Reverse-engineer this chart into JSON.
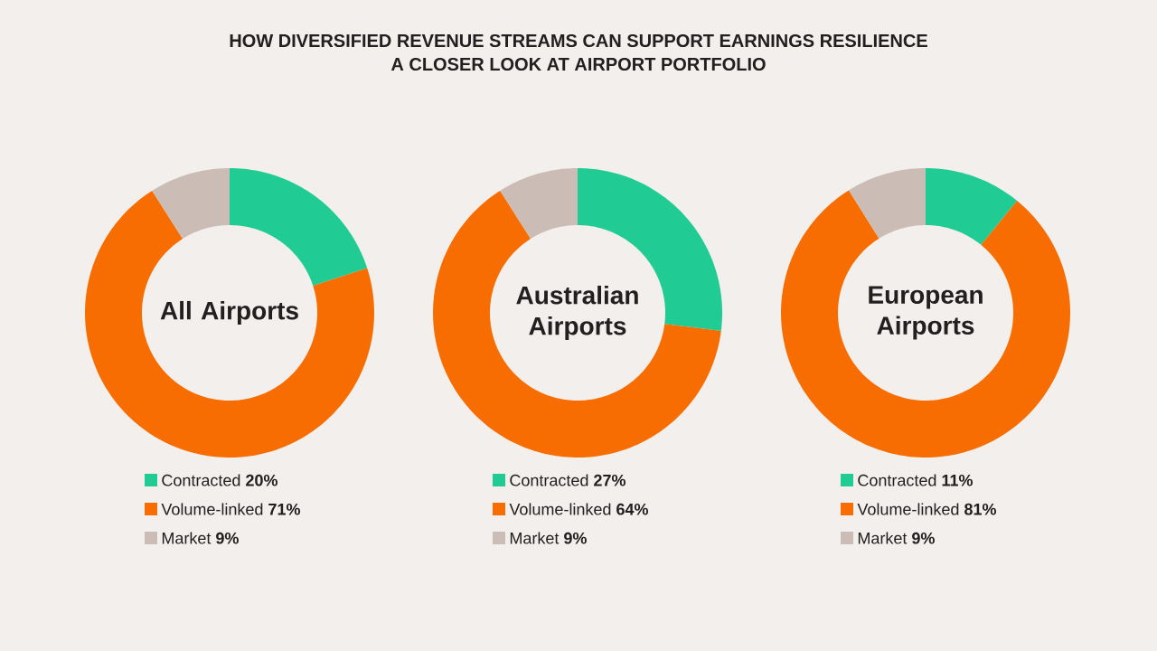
{
  "chart_data": [
    {
      "type": "other",
      "title": "HOW DIVERSIFIED REVENUE STREAMS CAN SUPPORT EARNINGS RESILIENCE",
      "subtitle": "A CLOSER LOOK AT AIRPORT PORTFOLIO"
    },
    {
      "type": "donut",
      "title": "All Airports",
      "categories": [
        "Contracted",
        "Volume-linked",
        "Market"
      ],
      "values": [
        20,
        71,
        9
      ],
      "value_labels": [
        "20%",
        "71%",
        "9%"
      ],
      "colors": [
        "#20cc94",
        "#f76d02",
        "#cbbdb5"
      ],
      "legend": "bottom"
    },
    {
      "type": "donut",
      "title": "Australian Airports",
      "categories": [
        "Contracted",
        "Volume-linked",
        "Market"
      ],
      "values": [
        27,
        64,
        9
      ],
      "value_labels": [
        "27%",
        "64%",
        "9%"
      ],
      "colors": [
        "#20cc94",
        "#f76d02",
        "#cbbdb5"
      ],
      "legend": "bottom"
    },
    {
      "type": "donut",
      "title": "European Airports",
      "categories": [
        "Contracted",
        "Volume-linked",
        "Market"
      ],
      "values": [
        11,
        81,
        9
      ],
      "value_labels": [
        "11%",
        "81%",
        "9%"
      ],
      "colors": [
        "#20cc94",
        "#f76d02",
        "#cbbdb5"
      ],
      "legend": "bottom"
    }
  ]
}
